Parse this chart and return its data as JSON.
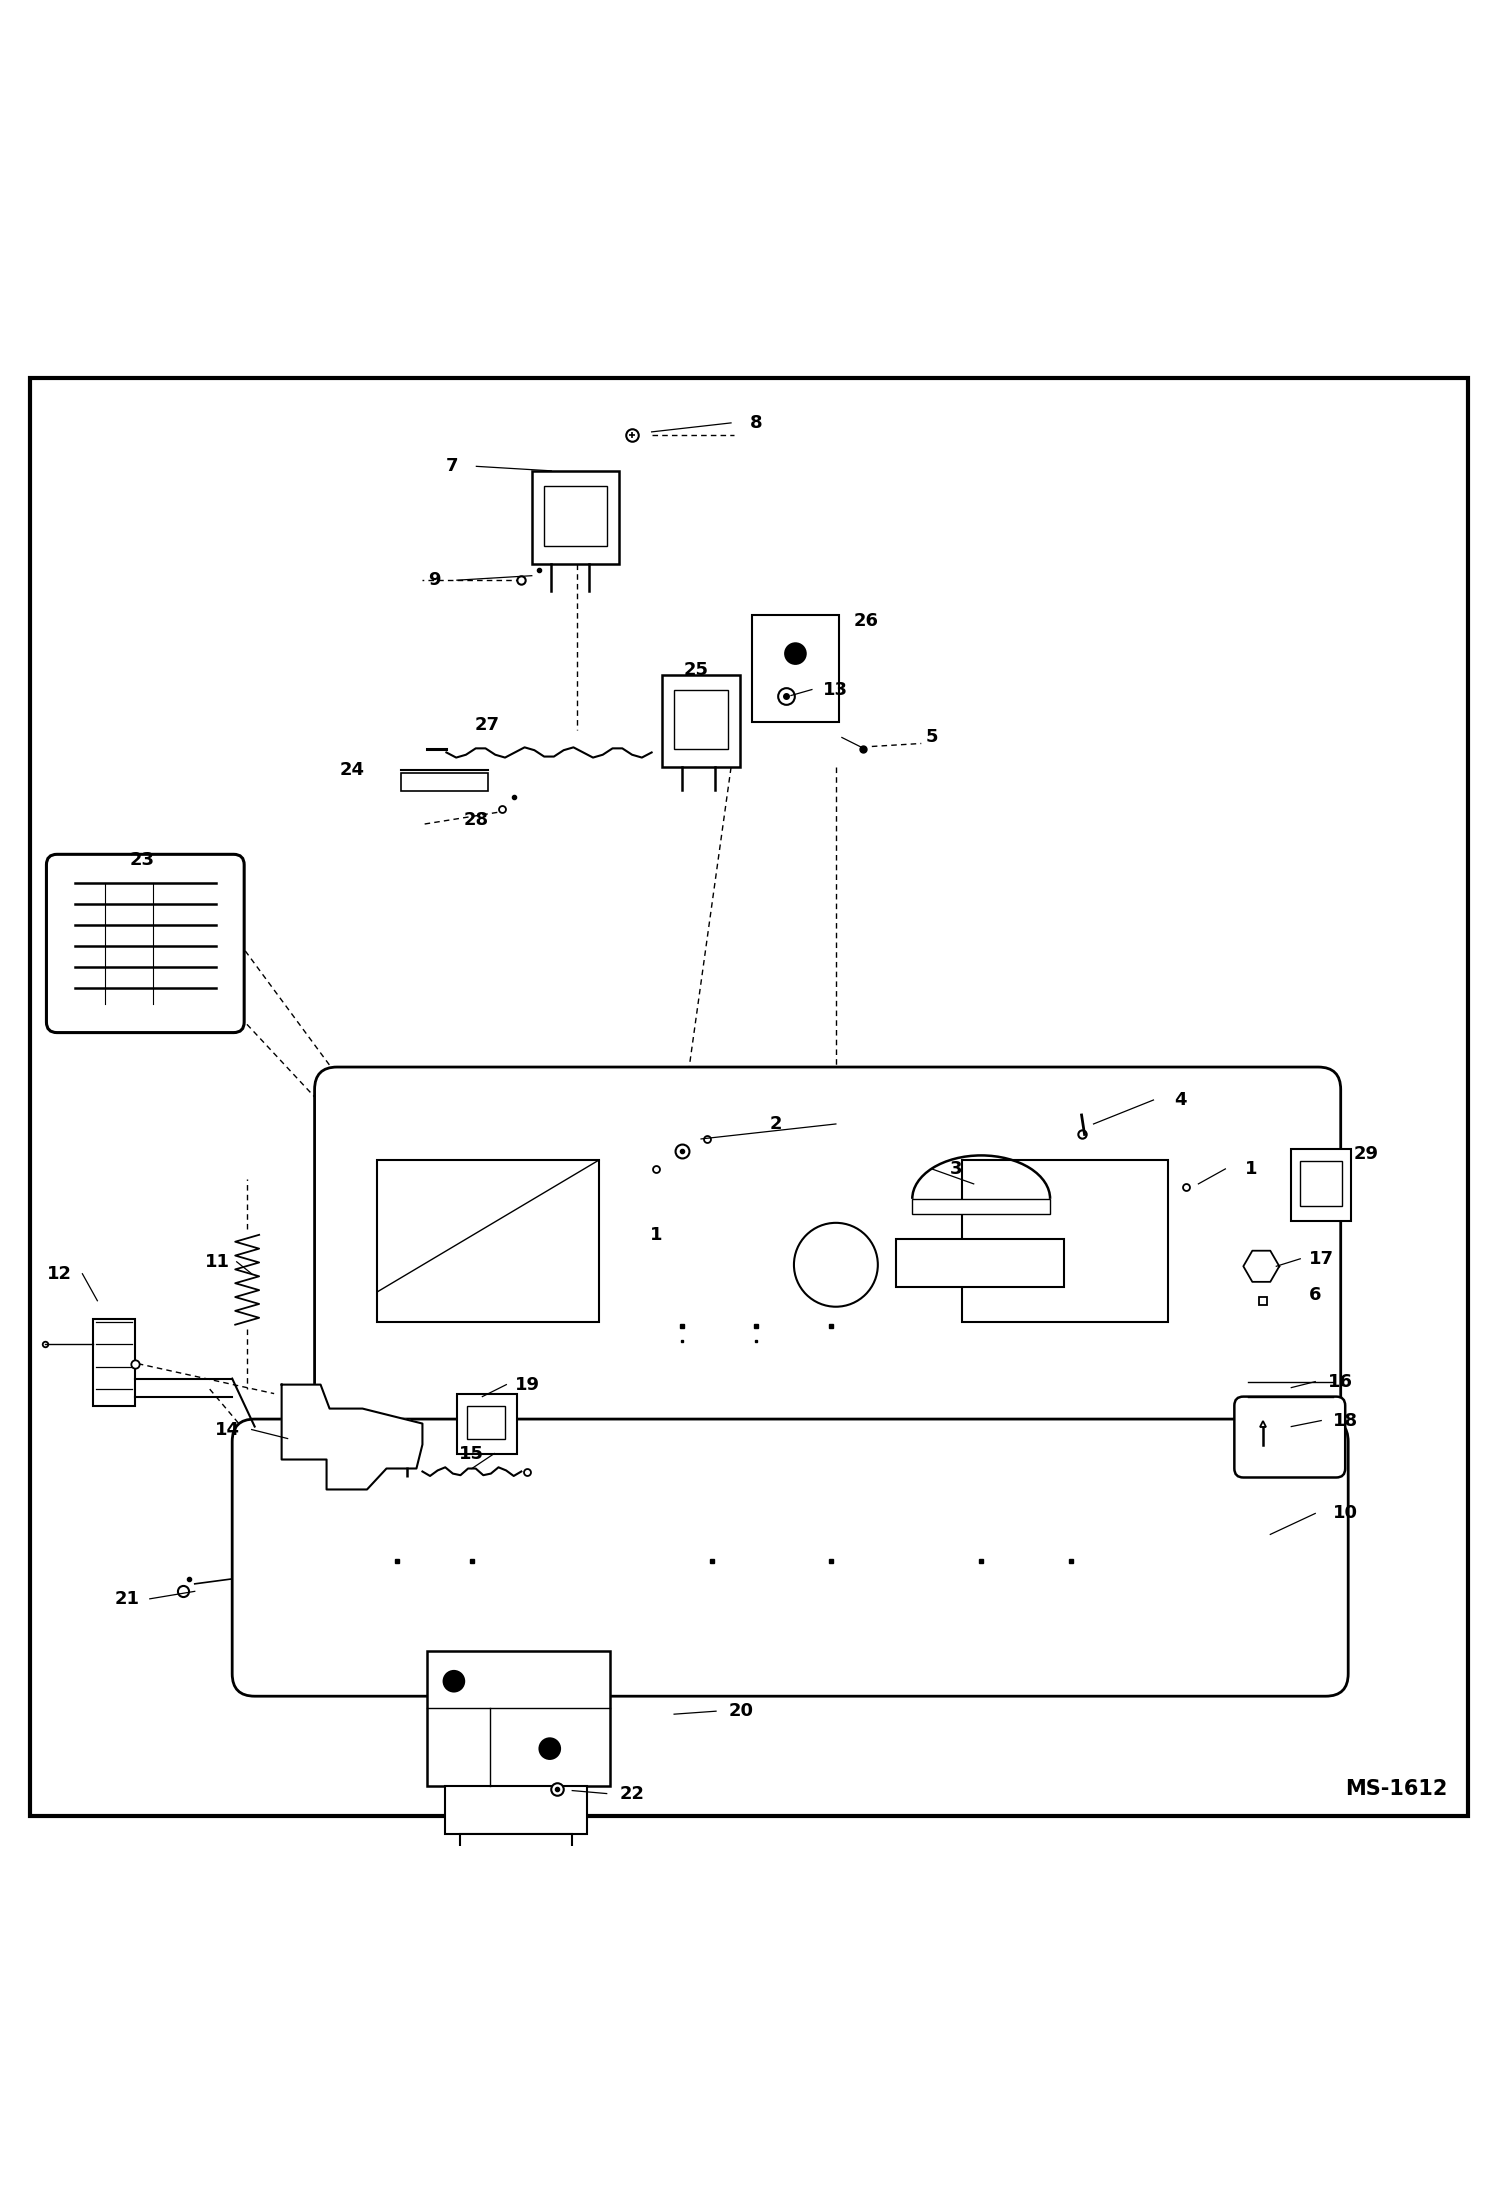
{
  "bg_color": "#ffffff",
  "border_color": "#000000",
  "line_color": "#000000",
  "label_color": "#000000",
  "figure_size": [
    14.98,
    21.94
  ],
  "dpi": 100,
  "watermark": "MS-1612"
}
